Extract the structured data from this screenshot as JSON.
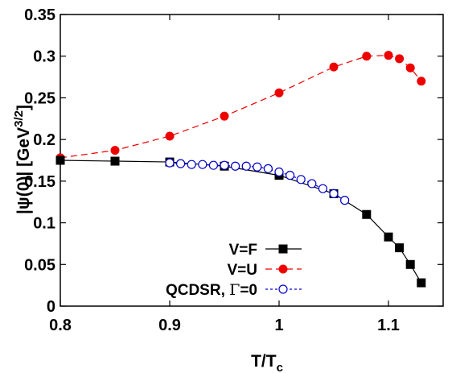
{
  "chart_data": {
    "type": "line",
    "xlabel": "T/T",
    "xlabel_sub": "c",
    "ylabel": "|ψ(0)| [GeV",
    "ylabel_sup": "3/2",
    "ylabel_close": "]",
    "xlim": [
      0.8,
      1.15
    ],
    "ylim": [
      0,
      0.35
    ],
    "x_ticks": [
      0.8,
      0.9,
      1.0,
      1.1
    ],
    "x_tick_labels": [
      "0.8",
      "0.9",
      "1",
      "1.1"
    ],
    "y_ticks": [
      0,
      0.05,
      0.1,
      0.15,
      0.2,
      0.25,
      0.3,
      0.35
    ],
    "y_tick_labels": [
      "0",
      "0.05",
      "0.1",
      "0.15",
      "0.2",
      "0.25",
      "0.3",
      "0.35"
    ],
    "grid": false,
    "legend_position": "bottom-right",
    "series": [
      {
        "name": "V=F",
        "color": "#000000",
        "marker": "filled-square",
        "line": "solid",
        "x": [
          0.8,
          0.85,
          0.9,
          0.95,
          1.0,
          1.05,
          1.08,
          1.1,
          1.11,
          1.12,
          1.13
        ],
        "y": [
          0.175,
          0.174,
          0.173,
          0.168,
          0.157,
          0.135,
          0.11,
          0.083,
          0.07,
          0.05,
          0.028
        ]
      },
      {
        "name": "V=U",
        "color": "#ee0000",
        "marker": "filled-circle",
        "line": "dashed",
        "x": [
          0.8,
          0.85,
          0.9,
          0.95,
          1.0,
          1.05,
          1.08,
          1.1,
          1.11,
          1.12,
          1.13
        ],
        "y": [
          0.178,
          0.187,
          0.204,
          0.228,
          0.256,
          0.287,
          0.3,
          0.301,
          0.297,
          0.286,
          0.27
        ]
      },
      {
        "name_prefix": "QCDSR, ",
        "name_symbol": "Γ",
        "name_suffix": "=0",
        "color": "#0000cc",
        "marker": "open-circle",
        "line": "dotted",
        "x": [
          0.9,
          0.91,
          0.92,
          0.93,
          0.94,
          0.95,
          0.96,
          0.97,
          0.98,
          0.99,
          1.0,
          1.01,
          1.02,
          1.03,
          1.04,
          1.05,
          1.06
        ],
        "y": [
          0.172,
          0.171,
          0.17,
          0.17,
          0.169,
          0.169,
          0.168,
          0.168,
          0.167,
          0.165,
          0.161,
          0.157,
          0.152,
          0.147,
          0.141,
          0.135,
          0.127
        ]
      }
    ]
  }
}
